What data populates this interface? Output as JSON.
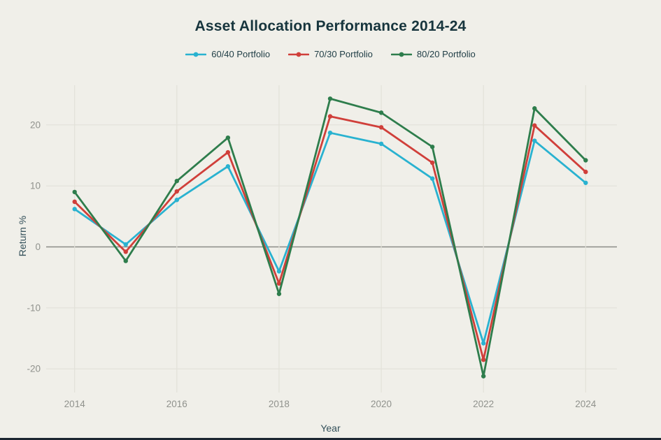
{
  "chart_data": {
    "type": "line",
    "title": "Asset Allocation Performance 2014-24",
    "xlabel": "Year",
    "ylabel": "Return %",
    "x": [
      2014,
      2015,
      2016,
      2017,
      2018,
      2019,
      2020,
      2021,
      2022,
      2023,
      2024
    ],
    "x_tick_labels": [
      "2014",
      "2016",
      "2018",
      "2020",
      "2022",
      "2024"
    ],
    "y_ticks": [
      -20,
      -10,
      0,
      10,
      20
    ],
    "ylim": [
      -25,
      26
    ],
    "grid": "on",
    "legend_position": "top",
    "marker": "dot",
    "series": [
      {
        "name": "60/40 Portfolio",
        "color": "#29b2d0",
        "values": [
          6.2,
          0.4,
          7.7,
          13.2,
          -4.0,
          18.7,
          16.9,
          11.2,
          -15.8,
          17.4,
          10.5
        ]
      },
      {
        "name": "70/30 Portfolio",
        "color": "#d03f3a",
        "values": [
          7.4,
          -0.8,
          9.1,
          15.5,
          -6.0,
          21.4,
          19.6,
          13.8,
          -18.5,
          19.9,
          12.3
        ]
      },
      {
        "name": "80/20 Portfolio",
        "color": "#2e7d4c",
        "values": [
          9.0,
          -2.3,
          10.8,
          17.9,
          -7.7,
          24.3,
          22.0,
          16.4,
          -21.2,
          22.7,
          14.2
        ]
      }
    ]
  },
  "theme": {
    "background": "#f0efe9",
    "title_color": "#17353d",
    "axis_title_color": "#33505a",
    "tick_label_color": "#90928d",
    "gridline_color": "#e2e1d9",
    "zero_line_color": "#8b8b87",
    "bottom_edge_color": "#1b2530"
  }
}
